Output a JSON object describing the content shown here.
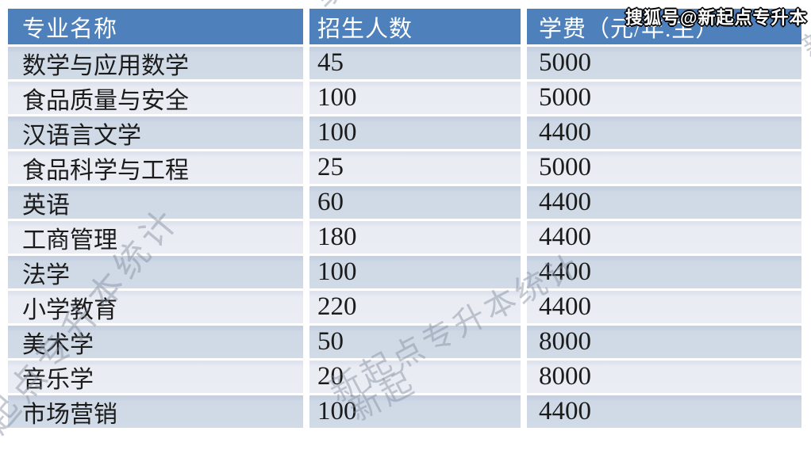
{
  "chart_data": {
    "type": "table",
    "columns": [
      "专业名称",
      "招生人数",
      "学费（元/年.生）"
    ],
    "rows": [
      {
        "major": "数学与应用数学",
        "enrollment": "45",
        "tuition": "5000"
      },
      {
        "major": "食品质量与安全",
        "enrollment": "100",
        "tuition": "5000"
      },
      {
        "major": "汉语言文学",
        "enrollment": "100",
        "tuition": "4400"
      },
      {
        "major": "食品科学与工程",
        "enrollment": "25",
        "tuition": "5000"
      },
      {
        "major": "英语",
        "enrollment": "60",
        "tuition": "4400"
      },
      {
        "major": "工商管理",
        "enrollment": "180",
        "tuition": "4400"
      },
      {
        "major": "法学",
        "enrollment": "100",
        "tuition": "4400"
      },
      {
        "major": "小学教育",
        "enrollment": "220",
        "tuition": "4400"
      },
      {
        "major": "美术学",
        "enrollment": "50",
        "tuition": "8000"
      },
      {
        "major": "音乐学",
        "enrollment": "20",
        "tuition": "8000"
      },
      {
        "major": "市场营销",
        "enrollment": "100",
        "tuition": "4400"
      }
    ],
    "layout_hints": {
      "banded_rows": true,
      "header_position": "top"
    }
  },
  "watermarks": {
    "sohu_badge": "搜狐号@新起点专升本",
    "diagonal_full": "新起点专升本统计",
    "diagonal_partial_bottom": "新起",
    "diagonal_partial_top": "统计",
    "diagonal_partial_right": "新"
  },
  "colors": {
    "header_bg": "#4E80BC",
    "header_text": "#FFFFFF",
    "row_band_dark": "#CFD9E6",
    "row_band_light": "#E9ECF3",
    "body_text": "#1B1B1B",
    "watermark_gray": "#808C9E"
  }
}
